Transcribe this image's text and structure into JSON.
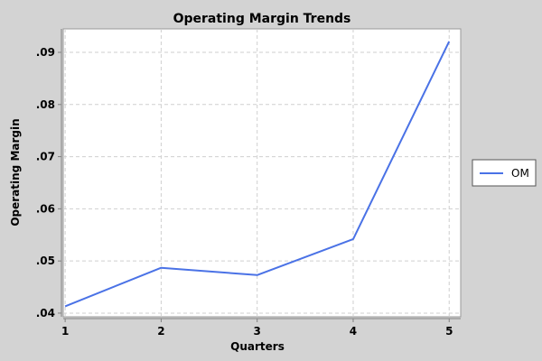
{
  "chart_data": {
    "type": "line",
    "title": "Operating Margin Trends",
    "xlabel": "Quarters",
    "ylabel": "Operating Margin",
    "x": [
      1,
      2,
      3,
      4,
      5
    ],
    "x_tick_labels": [
      "1",
      "2",
      "3",
      "4",
      "5"
    ],
    "y_ticks": [
      0.04,
      0.05,
      0.06,
      0.07,
      0.08,
      0.09
    ],
    "y_tick_labels": [
      ".04",
      ".05",
      ".06",
      ".07",
      ".08",
      ".09"
    ],
    "xlim": [
      0.98,
      5.12
    ],
    "ylim": [
      0.0393,
      0.0945
    ],
    "grid": true,
    "legend_position": "right",
    "series": [
      {
        "name": "OM",
        "color": "#4a72e6",
        "values": [
          0.0413,
          0.0487,
          0.0473,
          0.0542,
          0.0921
        ]
      }
    ]
  }
}
